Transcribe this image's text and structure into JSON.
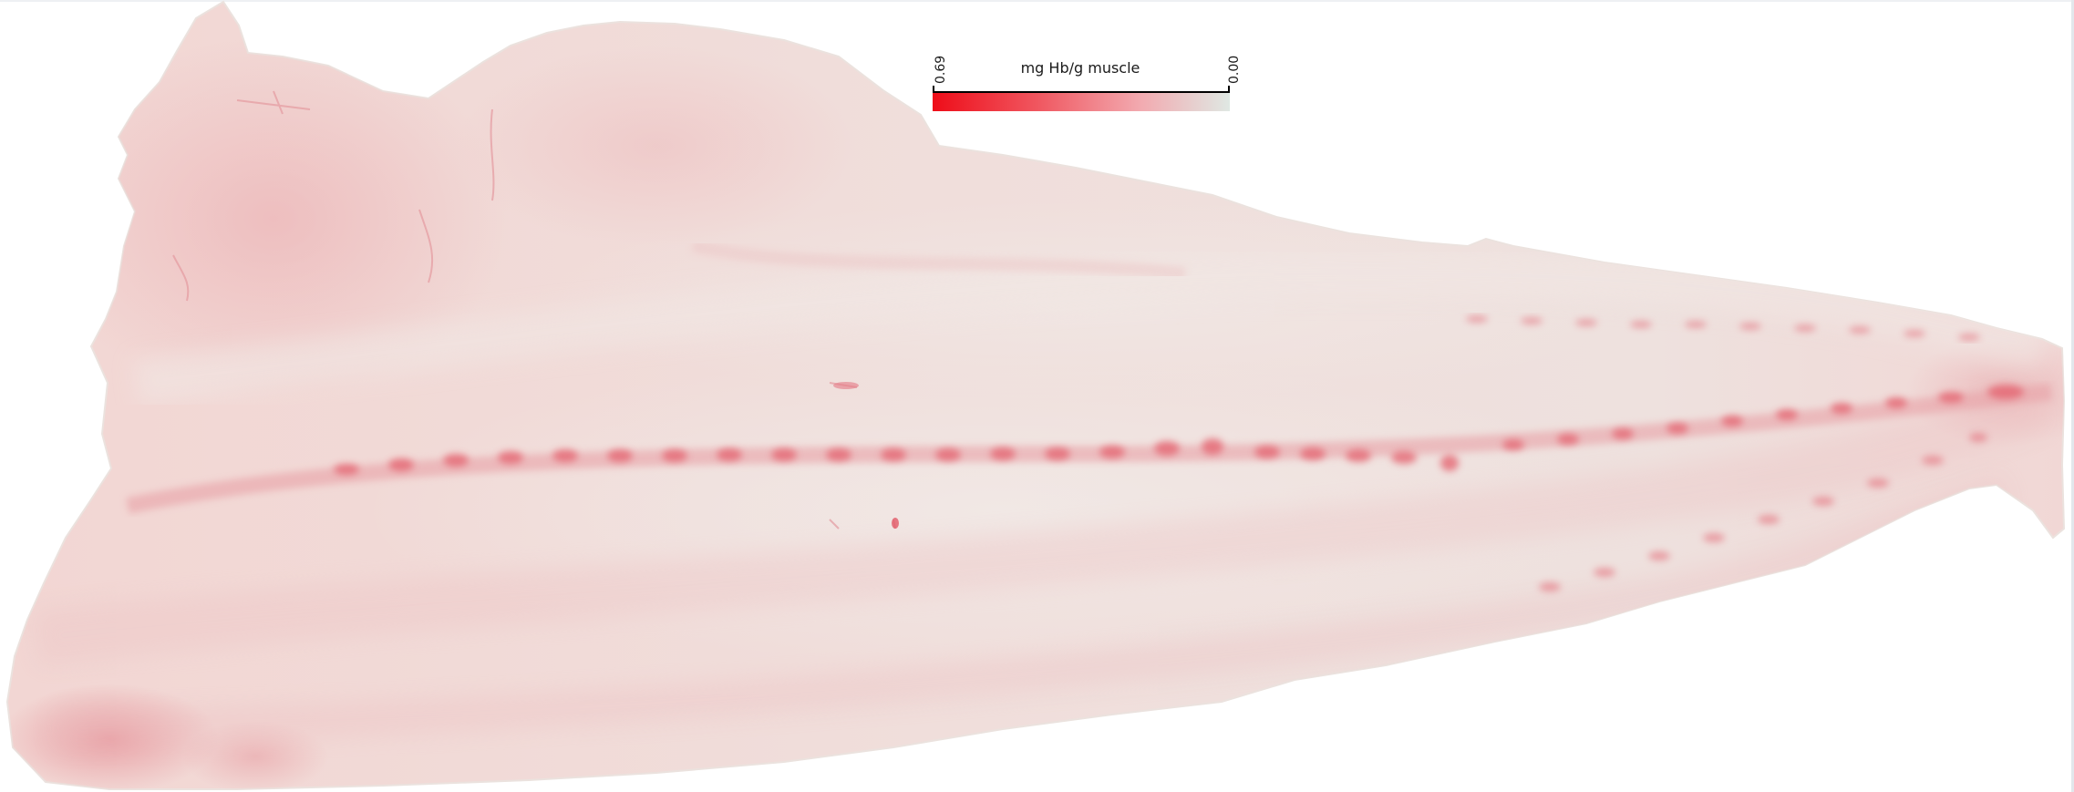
{
  "image": {
    "subject": "fish fillet heatmap",
    "background_color": "#ffffff",
    "tissue_color": "#f3d9d6",
    "tissue_edge_color": "#ece3df",
    "blood_color": "#e0283a"
  },
  "colorbar": {
    "title": "mg Hb/g muscle",
    "max_label": "0.69",
    "min_label": "0.00",
    "color_max": "#ee0d19",
    "color_min": "#dfe8e3"
  }
}
